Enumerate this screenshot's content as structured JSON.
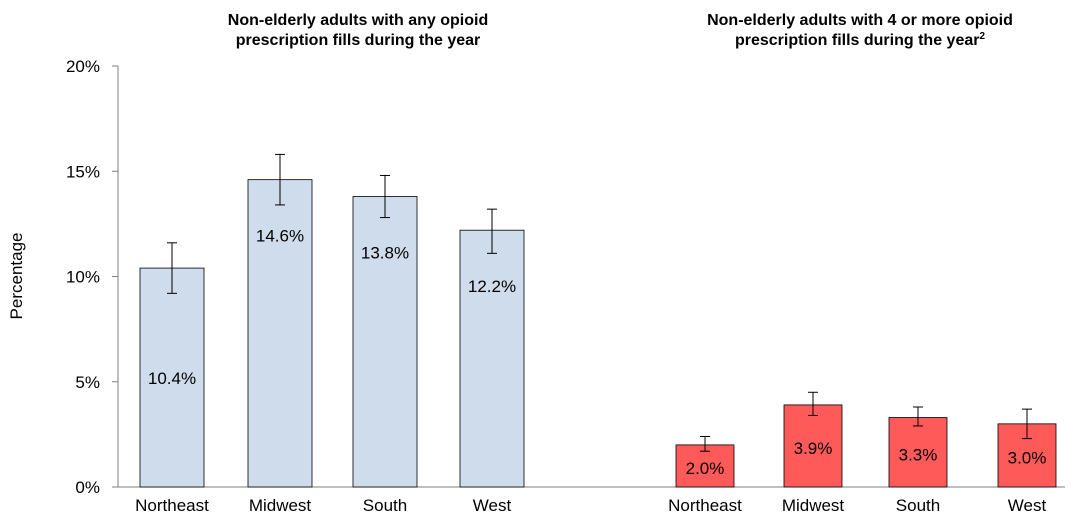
{
  "chart_data": [
    {
      "type": "bar",
      "title_line1": "Non-elderly adults with any opioid",
      "title_line2": "prescription fills during the year",
      "ylabel": "Percentage",
      "xlabel": "",
      "ylim": [
        0,
        20
      ],
      "yticks": [
        "0%",
        "5%",
        "10%",
        "15%",
        "20%"
      ],
      "categories": [
        "Northeast",
        "Midwest",
        "South",
        "West"
      ],
      "values": [
        10.4,
        14.6,
        13.8,
        12.2
      ],
      "data_labels": [
        "10.4%",
        "14.6%",
        "13.8%",
        "12.2%"
      ],
      "error_low": [
        9.2,
        13.4,
        12.8,
        11.1
      ],
      "error_high": [
        11.6,
        15.8,
        14.8,
        13.2
      ],
      "bar_color": "#cfdcec",
      "grid": false
    },
    {
      "type": "bar",
      "title_line1": "Non-elderly adults with 4 or more opioid",
      "title_line2": "prescription fills during the year",
      "title_superscript": "2",
      "ylim": [
        0,
        20
      ],
      "categories": [
        "Northeast",
        "Midwest",
        "South",
        "West"
      ],
      "values": [
        2.0,
        3.9,
        3.3,
        3.0
      ],
      "data_labels": [
        "2.0%",
        "3.9%",
        "3.3%",
        "3.0%"
      ],
      "error_low": [
        1.7,
        3.4,
        2.9,
        2.3
      ],
      "error_high": [
        2.4,
        4.5,
        3.8,
        3.7
      ],
      "bar_color": "#ff5a5a",
      "grid": false
    }
  ]
}
